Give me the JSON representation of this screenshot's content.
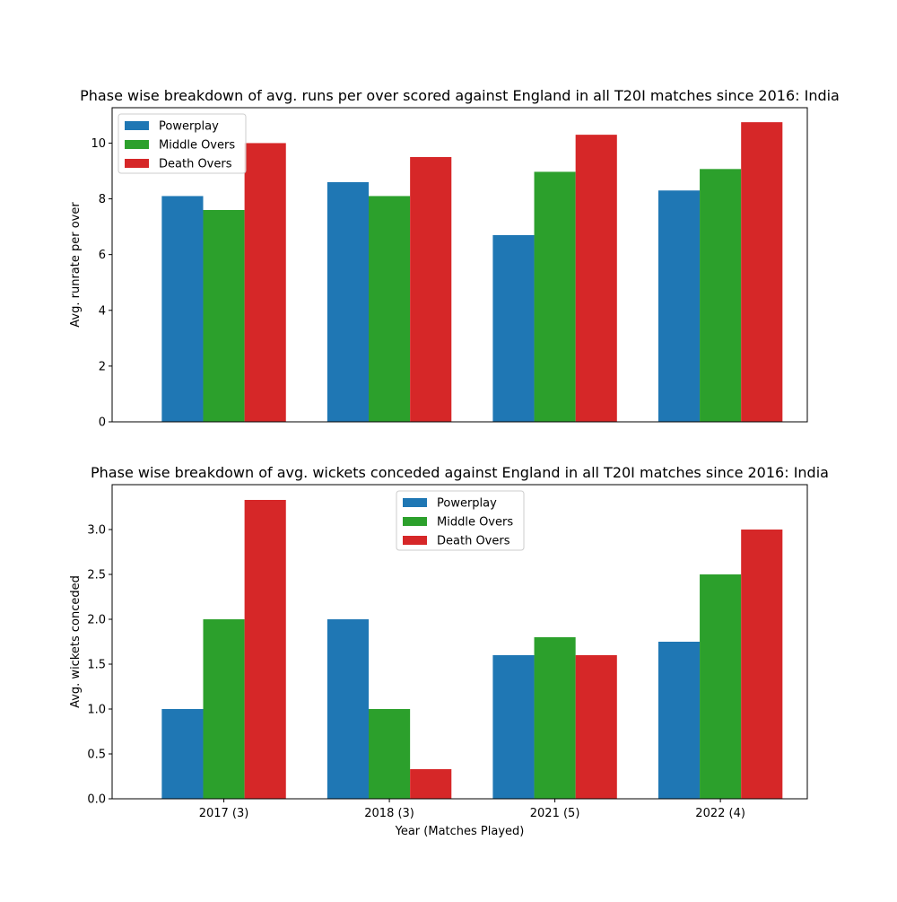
{
  "chart_data": [
    {
      "type": "bar",
      "title": "Phase wise breakdown of avg. runs per over scored against England in all T20I matches since 2016: India",
      "xlabel": "",
      "ylabel": "Avg. runrate per over",
      "categories": [
        "2017 (3)",
        "2018 (3)",
        "2021 (5)",
        "2022 (4)"
      ],
      "series": [
        {
          "name": "Powerplay",
          "color": "#1f77b4",
          "values": [
            8.1,
            8.6,
            6.7,
            8.3
          ]
        },
        {
          "name": "Middle Overs",
          "color": "#2ca02c",
          "values": [
            7.6,
            8.1,
            8.97,
            9.07
          ]
        },
        {
          "name": "Death Overs",
          "color": "#d62728",
          "values": [
            10.0,
            9.5,
            10.3,
            10.75
          ]
        }
      ],
      "ylim": [
        0,
        11.27
      ],
      "yticks": [
        0,
        2,
        4,
        6,
        8,
        10
      ],
      "ytick_labels": [
        "0",
        "2",
        "4",
        "6",
        "8",
        "10"
      ],
      "show_xticklabels": false,
      "legend": "upper left",
      "grid": false
    },
    {
      "type": "bar",
      "title": "Phase wise breakdown of avg. wickets conceded against England in all T20I matches since 2016: India",
      "xlabel": "Year (Matches Played)",
      "ylabel": "Avg. wickets conceded",
      "categories": [
        "2017 (3)",
        "2018 (3)",
        "2021 (5)",
        "2022 (4)"
      ],
      "series": [
        {
          "name": "Powerplay",
          "color": "#1f77b4",
          "values": [
            1.0,
            2.0,
            1.6,
            1.75
          ]
        },
        {
          "name": "Middle Overs",
          "color": "#2ca02c",
          "values": [
            2.0,
            1.0,
            1.8,
            2.5
          ]
        },
        {
          "name": "Death Overs",
          "color": "#d62728",
          "values": [
            3.33,
            0.33,
            1.6,
            3.0
          ]
        }
      ],
      "ylim": [
        0,
        3.5
      ],
      "yticks": [
        0,
        0.5,
        1,
        1.5,
        2,
        2.5,
        3
      ],
      "ytick_labels": [
        "0.0",
        "0.5",
        "1.0",
        "1.5",
        "2.0",
        "2.5",
        "3.0"
      ],
      "show_xticklabels": true,
      "legend": "upper center",
      "grid": false
    }
  ]
}
